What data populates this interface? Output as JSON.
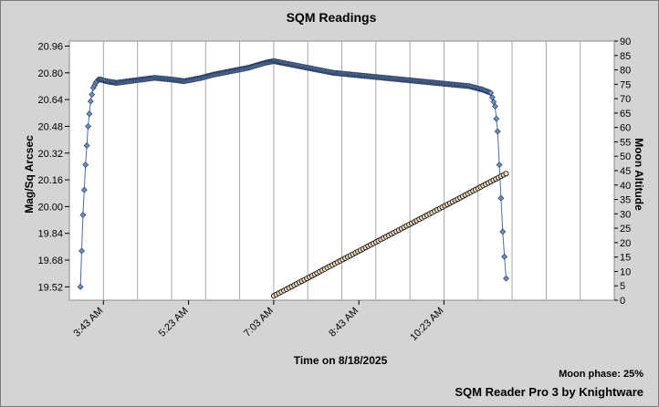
{
  "chart_data": {
    "type": "scatter",
    "title": "SQM Readings",
    "xlabel": "Time on 8/18/2025",
    "ylabel": "Mag/Sq Arcsec",
    "y2label": "Moon Altitude",
    "xlim": [
      "3:03 AM",
      "1:43 PM"
    ],
    "x_ticks": [
      "3:43 AM",
      "5:23 AM",
      "7:03 AM",
      "8:43 AM",
      "10:23 AM"
    ],
    "ylim": [
      19.44,
      20.99
    ],
    "y_ticks": [
      19.52,
      19.68,
      19.84,
      20.0,
      20.16,
      20.32,
      20.48,
      20.64,
      20.8,
      20.96
    ],
    "y2lim": [
      0,
      90
    ],
    "y2_ticks": [
      0,
      5,
      10,
      15,
      20,
      25,
      30,
      35,
      40,
      45,
      50,
      55,
      60,
      65,
      70,
      75,
      80,
      85,
      90
    ],
    "grid": true,
    "colors": {
      "sqm": "#4a6fa5",
      "sqm_marker": "#6a8fc0",
      "moon_marker": "#f0dcc0",
      "moon_outline": "#000000"
    },
    "series": [
      {
        "axis": "left",
        "x": [
          "3:16 AM",
          "3:19 AM",
          "3:22 AM",
          "3:25 AM",
          "3:28 AM",
          "3:31 AM",
          "3:34 AM",
          "3:37 AM",
          "3:40 AM",
          "3:46 AM",
          "3:58 AM",
          "4:13 AM",
          "4:28 AM",
          "4:43 AM",
          "5:03 AM",
          "5:18 AM",
          "5:38 AM",
          "5:53 AM",
          "6:13 AM",
          "6:33 AM",
          "6:53 AM",
          "7:03 AM",
          "7:13 AM",
          "7:33 AM",
          "7:53 AM",
          "8:13 AM",
          "8:33 AM",
          "8:53 AM",
          "9:13 AM",
          "9:33 AM",
          "9:53 AM",
          "10:13 AM",
          "10:33 AM",
          "10:53 AM",
          "11:08 AM",
          "11:18 AM",
          "11:23 AM",
          "11:26 AM",
          "11:28 AM",
          "11:30 AM",
          "11:32 AM",
          "11:34 AM",
          "11:36 AM"
        ],
        "values": [
          19.52,
          19.95,
          20.25,
          20.48,
          20.63,
          20.71,
          20.74,
          20.76,
          20.76,
          20.75,
          20.74,
          20.75,
          20.76,
          20.77,
          20.76,
          20.75,
          20.77,
          20.79,
          20.81,
          20.83,
          20.86,
          20.87,
          20.86,
          20.84,
          20.82,
          20.8,
          20.79,
          20.78,
          20.77,
          20.76,
          20.75,
          20.74,
          20.73,
          20.72,
          20.7,
          20.68,
          20.6,
          20.45,
          20.25,
          20.05,
          19.85,
          19.7,
          19.57
        ]
      },
      {
        "axis": "right",
        "x": [
          "7:03 AM",
          "11:36 AM"
        ],
        "values": [
          1.5,
          44
        ]
      }
    ]
  },
  "footer": {
    "moon_phase": "Moon phase: 25%",
    "credit": "SQM Reader Pro 3 by Knightware"
  }
}
